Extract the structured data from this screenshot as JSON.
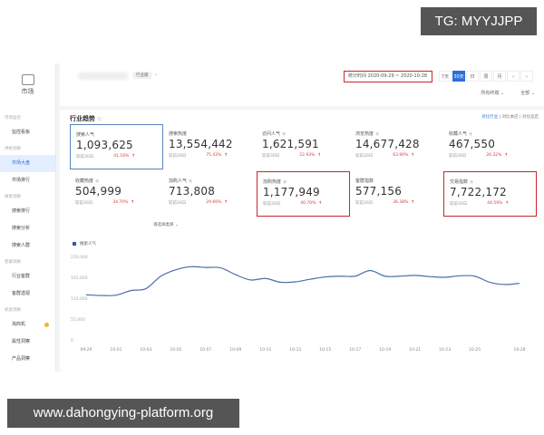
{
  "sidebar": {
    "logo_label": "市场",
    "sections": [
      {
        "title": "市场监控",
        "items": [
          {
            "label": "监控看板",
            "active": false
          }
        ]
      },
      {
        "title": "供给洞察",
        "items": [
          {
            "label": "市场大盘",
            "active": true
          },
          {
            "label": "市场排行",
            "active": false
          }
        ]
      },
      {
        "title": "搜索洞察",
        "items": [
          {
            "label": "搜索排行",
            "active": false
          },
          {
            "label": "搜索分析",
            "active": false
          },
          {
            "label": "搜索人群",
            "active": false
          }
        ]
      },
      {
        "title": "客群洞察",
        "items": [
          {
            "label": "行业客群",
            "active": false
          },
          {
            "label": "客群透视",
            "active": false
          }
        ]
      },
      {
        "title": "机会洞察",
        "items": [
          {
            "label": "淘商机",
            "active": false,
            "badge_dot": true
          },
          {
            "label": "属性洞察",
            "active": false
          },
          {
            "label": "产品洞察",
            "active": false
          }
        ]
      }
    ]
  },
  "topbar": {
    "version_tag": "行业版",
    "date_range": "统计时间 2020-09-29 ~ 2020-10-28",
    "period_tabs": [
      "7天",
      "30天",
      "日",
      "周",
      "月",
      "‹",
      "›"
    ],
    "active_period": "30天",
    "filter_terminal": "所有终端",
    "filter_scope": "全部"
  },
  "panel": {
    "title": "行业趋势",
    "compare_links": [
      "对比行业",
      "对比本店",
      "对比竞店"
    ],
    "compare_divider": "|",
    "cards": [
      {
        "label": "搜索人气",
        "value": "1,093,625",
        "compare": "较前30日",
        "change": "41.16%",
        "selected": true,
        "highlighted": false
      },
      {
        "label": "搜索热度",
        "value": "13,554,442",
        "compare": "较前30日",
        "change": "75.43%",
        "selected": false,
        "highlighted": false
      },
      {
        "label": "访问人气",
        "value": "1,621,591",
        "compare": "较前30日",
        "change": "22.93%",
        "selected": false,
        "highlighted": false
      },
      {
        "label": "浏览热度",
        "value": "14,677,428",
        "compare": "较前30日",
        "change": "63.90%",
        "selected": false,
        "highlighted": false
      },
      {
        "label": "收藏人气",
        "value": "467,550",
        "compare": "较前30日",
        "change": "26.32%",
        "selected": false,
        "highlighted": false
      },
      {
        "label": "收藏热度",
        "value": "504,999",
        "compare": "较前30日",
        "change": "34.70%",
        "selected": false,
        "highlighted": false
      },
      {
        "label": "加购人气",
        "value": "713,808",
        "compare": "较前30日",
        "change": "29.66%",
        "selected": false,
        "highlighted": false
      },
      {
        "label": "加购热度",
        "value": "1,177,949",
        "compare": "较前30日",
        "change": "40.70%",
        "selected": false,
        "highlighted": true
      },
      {
        "label": "客群指数",
        "value": "577,156",
        "compare": "较前30日",
        "change": "36.38%",
        "selected": false,
        "highlighted": false
      },
      {
        "label": "交易指数",
        "value": "7,722,172",
        "compare": "较前30日",
        "change": "44.59%",
        "selected": false,
        "highlighted": true
      }
    ],
    "chart_selector": "请选择类目"
  },
  "chart_data": {
    "type": "line",
    "title": "",
    "legend": [
      "搜索人气"
    ],
    "legend_position": "top-left",
    "xlabel": "",
    "ylabel": "",
    "ylim": [
      0,
      220000
    ],
    "yticks": [
      "0",
      "55,000",
      "110,000",
      "165,000",
      "220,000"
    ],
    "xticks": [
      "09-29",
      "10-01",
      "10-03",
      "10-05",
      "10-07",
      "10-09",
      "10-11",
      "10-13",
      "10-15",
      "10-17",
      "10-19",
      "10-21",
      "10-23",
      "10-25",
      "10-28"
    ],
    "grid": false,
    "color": "#4a6fa8",
    "x": [
      "09-29",
      "09-30",
      "10-01",
      "10-02",
      "10-03",
      "10-04",
      "10-05",
      "10-06",
      "10-07",
      "10-08",
      "10-09",
      "10-10",
      "10-11",
      "10-12",
      "10-13",
      "10-14",
      "10-15",
      "10-16",
      "10-17",
      "10-18",
      "10-19",
      "10-20",
      "10-21",
      "10-22",
      "10-23",
      "10-24",
      "10-25",
      "10-26",
      "10-27",
      "10-28"
    ],
    "series": [
      {
        "name": "搜索人气",
        "values": [
          119000,
          117000,
          118000,
          130000,
          135000,
          168000,
          185000,
          193000,
          191000,
          190000,
          172000,
          158000,
          162000,
          152000,
          153000,
          160000,
          166000,
          168000,
          168000,
          183000,
          168000,
          168000,
          170000,
          167000,
          165000,
          169000,
          168000,
          152000,
          146000,
          149000
        ]
      }
    ]
  },
  "overlays": {
    "tg_tag": "TG: MYYJJPP",
    "url_tag": "www.dahongying-platform.org"
  }
}
